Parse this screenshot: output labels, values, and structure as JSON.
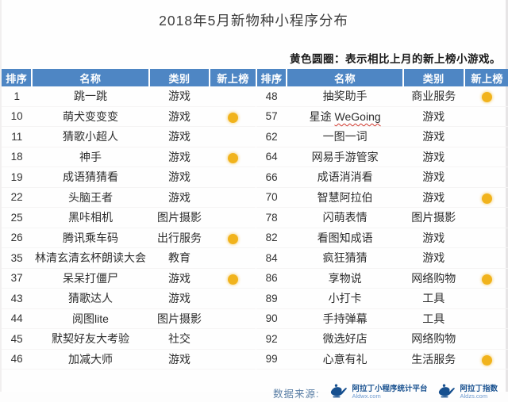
{
  "title": "2018年5月新物种小程序分布",
  "note": "黄色圆圈：表示相比上月的新上榜小游戏。",
  "columns": [
    "排序",
    "名称",
    "类别",
    "新上榜"
  ],
  "tables": [
    {
      "rows": [
        {
          "rank": "1",
          "name": "跳一跳",
          "category": "游戏",
          "new": false
        },
        {
          "rank": "10",
          "name": "萌犬变变变",
          "category": "游戏",
          "new": true
        },
        {
          "rank": "11",
          "name": "猜歌小超人",
          "category": "游戏",
          "new": false
        },
        {
          "rank": "18",
          "name": "神手",
          "category": "游戏",
          "new": true
        },
        {
          "rank": "19",
          "name": "成语猜猜看",
          "category": "游戏",
          "new": false
        },
        {
          "rank": "22",
          "name": "头脑王者",
          "category": "游戏",
          "new": false
        },
        {
          "rank": "25",
          "name": "黑咔相机",
          "category": "图片摄影",
          "new": false
        },
        {
          "rank": "26",
          "name": "腾讯乘车码",
          "category": "出行服务",
          "new": true
        },
        {
          "rank": "35",
          "name": "林清玄清玄杯朗读大会",
          "category": "教育",
          "new": false
        },
        {
          "rank": "37",
          "name": "呆呆打僵尸",
          "category": "游戏",
          "new": true
        },
        {
          "rank": "43",
          "name": "猜歌达人",
          "category": "游戏",
          "new": false
        },
        {
          "rank": "44",
          "name": "阅图lite",
          "category": "图片摄影",
          "new": false
        },
        {
          "rank": "45",
          "name": "默契好友大考验",
          "category": "社交",
          "new": false
        },
        {
          "rank": "46",
          "name": "加减大师",
          "category": "游戏",
          "new": false
        }
      ]
    },
    {
      "rows": [
        {
          "rank": "48",
          "name": "抽奖助手",
          "category": "商业服务",
          "new": true
        },
        {
          "rank": "57",
          "name": "星途 WeGoing",
          "category": "游戏",
          "new": false,
          "wavy": "WeGoing"
        },
        {
          "rank": "62",
          "name": "一图一词",
          "category": "游戏",
          "new": false
        },
        {
          "rank": "64",
          "name": "网易手游管家",
          "category": "游戏",
          "new": false
        },
        {
          "rank": "66",
          "name": "成语消消看",
          "category": "游戏",
          "new": false
        },
        {
          "rank": "70",
          "name": "智慧阿拉伯",
          "category": "游戏",
          "new": true
        },
        {
          "rank": "78",
          "name": "闪萌表情",
          "category": "图片摄影",
          "new": false
        },
        {
          "rank": "82",
          "name": "看图知成语",
          "category": "游戏",
          "new": false
        },
        {
          "rank": "84",
          "name": "疯狂猜猜",
          "category": "游戏",
          "new": false
        },
        {
          "rank": "86",
          "name": "享物说",
          "category": "网络购物",
          "new": true
        },
        {
          "rank": "89",
          "name": "小打卡",
          "category": "工具",
          "new": false
        },
        {
          "rank": "90",
          "name": "手持弹幕",
          "category": "工具",
          "new": false
        },
        {
          "rank": "92",
          "name": "微选好店",
          "category": "网络购物",
          "new": false
        },
        {
          "rank": "99",
          "name": "心意有礼",
          "category": "生活服务",
          "new": true
        }
      ]
    }
  ],
  "footer": {
    "source_label": "数据来源:",
    "logos": [
      {
        "name": "阿拉丁小程序统计平台",
        "url": "Aldwx.com"
      },
      {
        "name": "阿拉丁指数",
        "url": "Aldzs.com"
      }
    ]
  },
  "colors": {
    "header_bg": "#4e86c4",
    "header_text": "#ffffff",
    "circle": "#f1b31c",
    "wavy_underline": "#d0382e",
    "logo_blue": "#17508f"
  }
}
